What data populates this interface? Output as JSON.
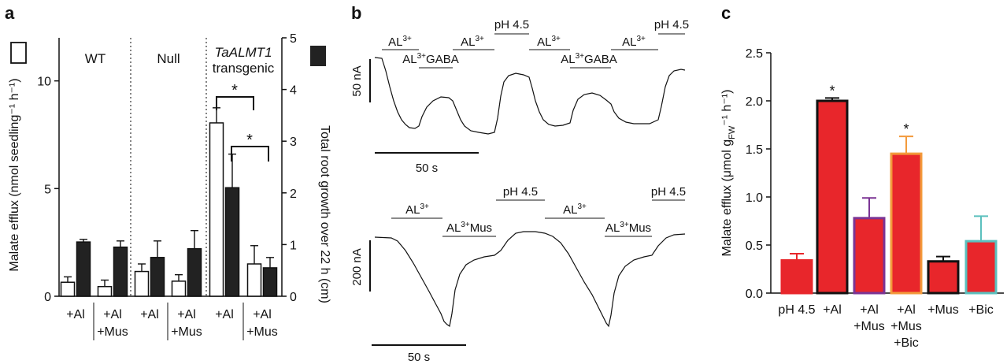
{
  "panel_a": {
    "letter": "a",
    "chart_data": {
      "type": "bar",
      "groups": [
        "WT",
        "Null",
        "TaALMT1 transgenic"
      ],
      "group_title_italic": "TaALMT1",
      "group_title_plain": "transgenic",
      "categories": [
        "+Al",
        "+Al +Mus",
        "+Al",
        "+Al +Mus",
        "+Al",
        "+Al +Mus"
      ],
      "category_lines": [
        [
          "+Al"
        ],
        [
          "+Al",
          "+Mus"
        ],
        [
          "+Al"
        ],
        [
          "+Al",
          "+Mus"
        ],
        [
          "+Al"
        ],
        [
          "+Al",
          "+Mus"
        ]
      ],
      "series": [
        {
          "name": "",
          "axis": "left",
          "fill": "#ffffff",
          "values": [
            0.65,
            0.45,
            1.15,
            0.7,
            8.05,
            1.5
          ],
          "errors": [
            0.25,
            0.3,
            0.35,
            0.3,
            0.7,
            0.85
          ]
        },
        {
          "name": "",
          "axis": "right",
          "fill": "#222222",
          "values": [
            1.05,
            0.95,
            0.75,
            0.92,
            2.1,
            0.55
          ],
          "errors": [
            0.05,
            0.12,
            0.32,
            0.35,
            0.65,
            0.2
          ]
        }
      ],
      "ylabel_left": "Malate efflux (nmol seedling⁻¹ h⁻¹)",
      "ylabel_right": "Total root growth over 22 h (cm)",
      "ylim_left": [
        0,
        12
      ],
      "ylim_right": [
        0,
        5
      ],
      "yticks_left": [
        "0",
        "5",
        "10"
      ],
      "yticks_right": [
        "0",
        "1",
        "2",
        "3",
        "4",
        "5"
      ],
      "significance": [
        "*",
        "*"
      ]
    }
  },
  "panel_b": {
    "letter": "b",
    "top": {
      "labels": [
        "AL³⁺",
        "AL³⁺GABA",
        "AL³⁺",
        "pH 4.5",
        "AL³⁺",
        "AL³⁺GABA",
        "AL³⁺",
        "pH 4.5"
      ],
      "scale_y": "50 nA",
      "scale_x": "50 s"
    },
    "bottom": {
      "labels": [
        "AL³⁺",
        "AL³⁺Mus",
        "pH 4.5",
        "AL³⁺",
        "AL³⁺Mus",
        "pH 4.5"
      ],
      "scale_y": "200 nA",
      "scale_x": "50 s"
    }
  },
  "panel_c": {
    "letter": "c",
    "chart_data": {
      "type": "bar",
      "categories": [
        "pH 4.5",
        "+Al",
        "+Al +Mus",
        "+Al +Mus +Bic",
        "+Mus",
        "+Bic"
      ],
      "category_lines": [
        [
          "pH 4.5"
        ],
        [
          "+Al"
        ],
        [
          "+Al",
          "+Mus"
        ],
        [
          "+Al",
          "+Mus",
          "+Bic"
        ],
        [
          "+Mus"
        ],
        [
          "+Bic"
        ]
      ],
      "values": [
        0.34,
        2.0,
        0.78,
        1.45,
        0.33,
        0.54
      ],
      "errors": [
        0.07,
        0.03,
        0.21,
        0.18,
        0.05,
        0.26
      ],
      "fill": "#e8262b",
      "outline_colors": [
        "#e8262b",
        "#111111",
        "#7b3494",
        "#f39a3b",
        "#111111",
        "#5bc0be"
      ],
      "significance": [
        "",
        "*",
        "",
        "*",
        "",
        ""
      ],
      "ylabel": "Malate efflux (μmol g_FW⁻¹ h⁻¹)",
      "ylim": [
        0,
        2.5
      ],
      "yticks": [
        "0.0",
        "0.5",
        "1.0",
        "1.5",
        "2.0",
        "2.5"
      ]
    }
  }
}
